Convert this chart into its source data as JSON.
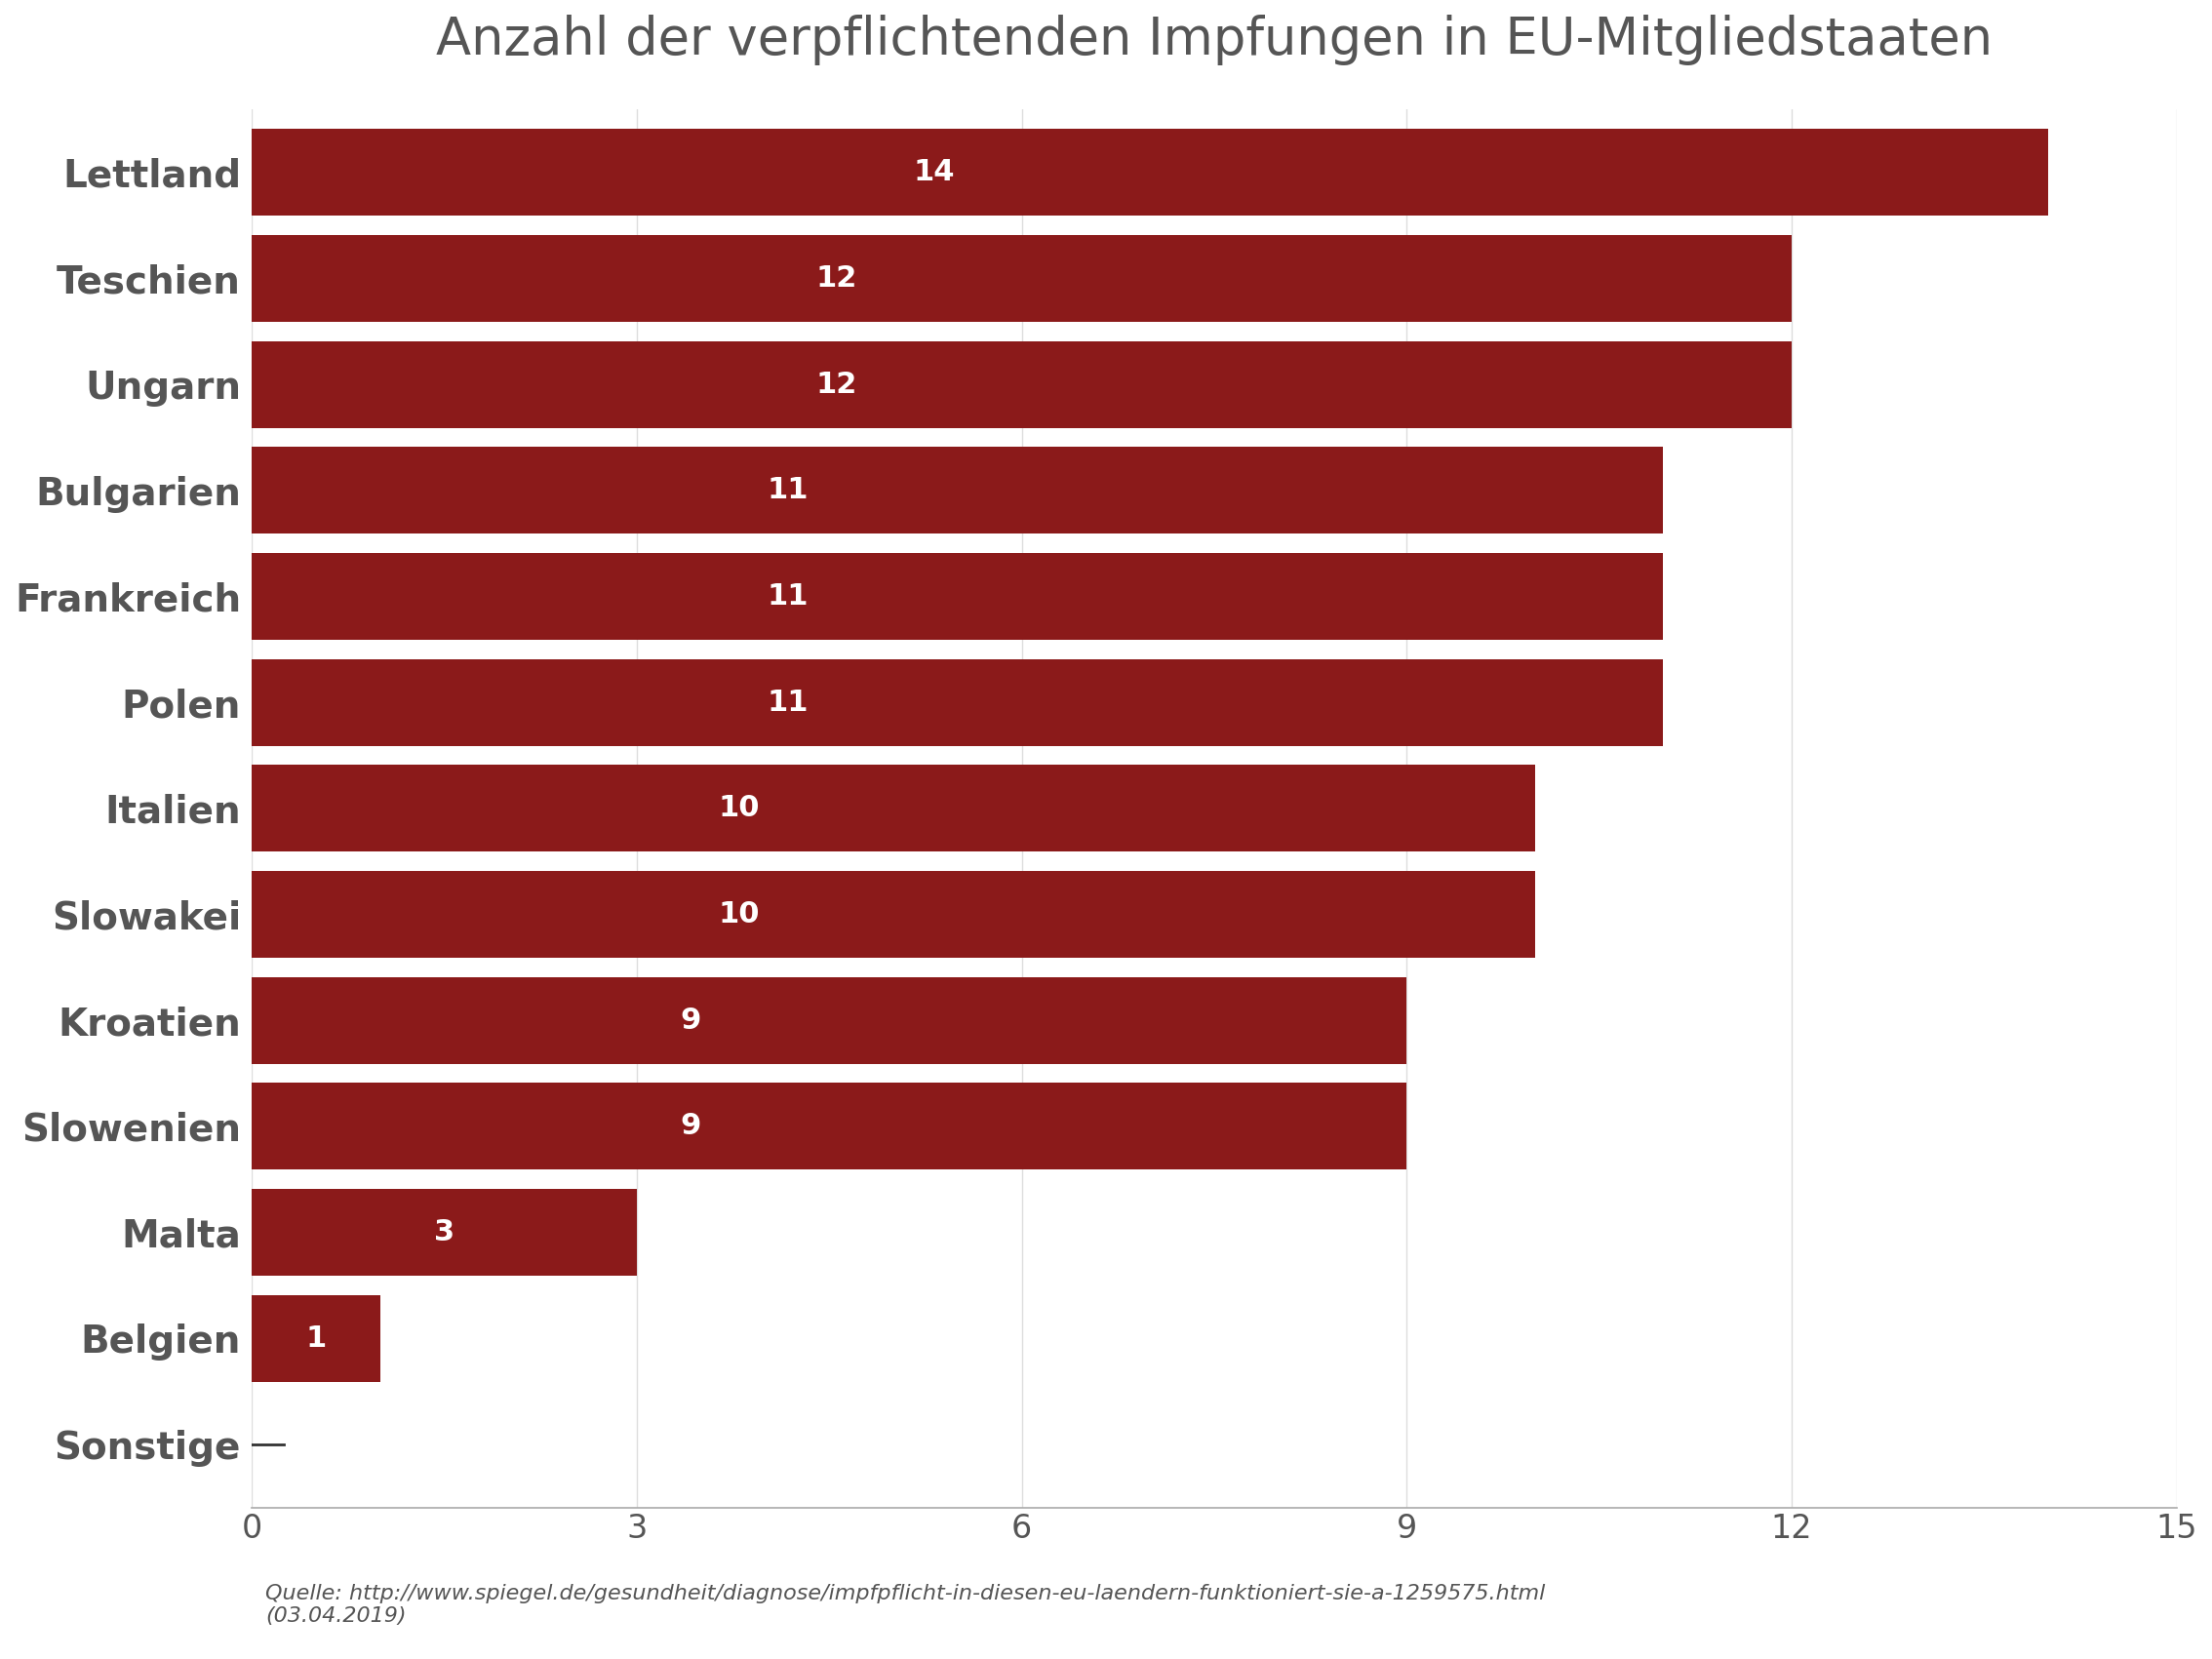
{
  "title": "Anzahl der verpflichtenden Impfungen in EU-Mitgliedstaaten",
  "categories": [
    "Sonstige",
    "Belgien",
    "Malta",
    "Slowenien",
    "Kroatien",
    "Slowakei",
    "Italien",
    "Polen",
    "Frankreich",
    "Bulgarien",
    "Ungarn",
    "Teschien",
    "Lettland"
  ],
  "values": [
    0,
    1,
    3,
    9,
    9,
    10,
    10,
    11,
    11,
    11,
    12,
    12,
    14
  ],
  "bar_color": "#8B1A1A",
  "label_color": "#FFFFFF",
  "title_color": "#555555",
  "tick_color": "#555555",
  "source_text": "Quelle: http://www.spiegel.de/gesundheit/diagnose/impfpflicht-in-diesen-eu-laendern-funktioniert-sie-a-1259575.html\n(03.04.2019)",
  "xlim": [
    0,
    15
  ],
  "xticks": [
    0,
    3,
    6,
    9,
    12,
    15
  ],
  "background_color": "#FFFFFF",
  "title_fontsize": 38,
  "ytick_fontsize": 28,
  "xtick_fontsize": 24,
  "bar_label_fontsize": 22,
  "source_fontsize": 16,
  "bar_height": 0.82
}
